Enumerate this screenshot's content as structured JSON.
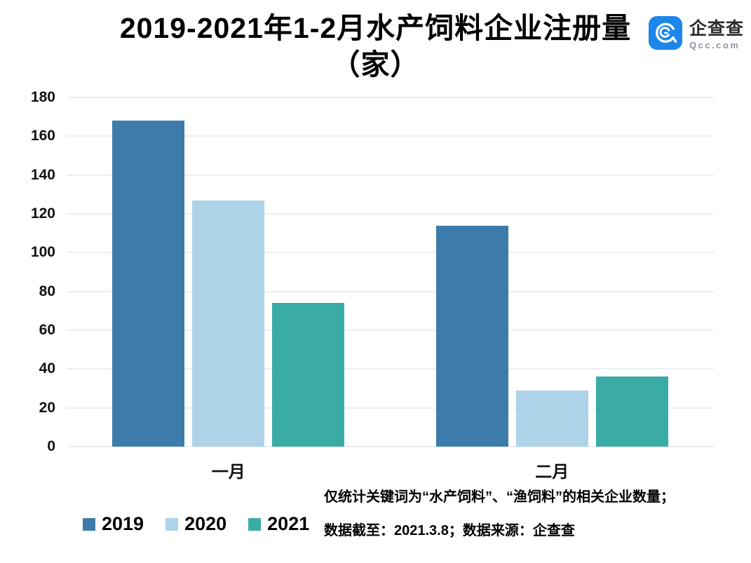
{
  "title": {
    "line1": "2019-2021年1-2月水产饲料企业注册量",
    "line2": "（家）"
  },
  "logo": {
    "name": "企查查",
    "domain": "Qcc.com",
    "brand_color": "#1b87ea"
  },
  "chart_data": {
    "type": "bar",
    "title": "2019-2021年1-2月水产饲料企业注册量（家）",
    "categories": [
      "一月",
      "二月"
    ],
    "series": [
      {
        "name": "2019",
        "color": "#3d7caa",
        "values": [
          168,
          114
        ]
      },
      {
        "name": "2020",
        "color": "#aed3e9",
        "values": [
          127,
          29
        ]
      },
      {
        "name": "2021",
        "color": "#3aaca5",
        "values": [
          74,
          36
        ]
      }
    ],
    "ylim": [
      0,
      180
    ],
    "y_ticks": [
      0,
      20,
      40,
      60,
      80,
      100,
      120,
      140,
      160,
      180
    ],
    "xlabel": "",
    "ylabel": "",
    "grid": true,
    "legend_position": "bottom-left",
    "gridline_color": "#ebeef3"
  },
  "footnote": {
    "line1": "仅统计关键词为“水产饲料”、“渔饲料”的相关企业数量；",
    "line2": "数据截至：2021.3.8；数据来源：企查查"
  }
}
